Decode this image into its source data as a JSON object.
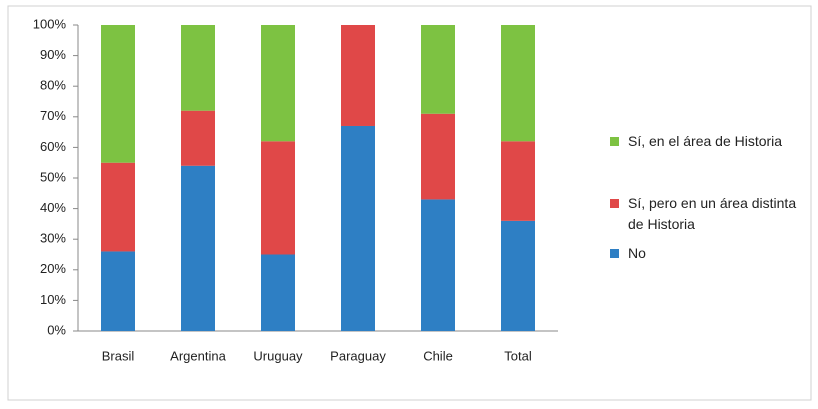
{
  "chart_data": {
    "type": "stacked_bar",
    "categories": [
      "Brasil",
      "Argentina",
      "Uruguay",
      "Paraguay",
      "Chile",
      "Total"
    ],
    "series": [
      {
        "name": "No",
        "color": "#2e7fc4",
        "values": [
          26,
          54,
          25,
          67,
          43,
          36
        ]
      },
      {
        "name": "Sí, pero en un área distinta de Historia",
        "color": "#e04848",
        "values": [
          29,
          18,
          37,
          33,
          28,
          26
        ]
      },
      {
        "name": "Sí, en el área de Historia",
        "color": "#7dc242",
        "values": [
          45,
          28,
          38,
          0,
          29,
          38
        ]
      }
    ],
    "ylim": [
      0,
      100
    ],
    "yticks": [
      {
        "value": 0,
        "label": "0%"
      },
      {
        "value": 10,
        "label": "10%"
      },
      {
        "value": 20,
        "label": "20%"
      },
      {
        "value": 30,
        "label": "30%"
      },
      {
        "value": 40,
        "label": "40%"
      },
      {
        "value": 50,
        "label": "50%"
      },
      {
        "value": 60,
        "label": "60%"
      },
      {
        "value": 70,
        "label": "70%"
      },
      {
        "value": 80,
        "label": "80%"
      },
      {
        "value": 90,
        "label": "90%"
      },
      {
        "value": 100,
        "label": "100%"
      }
    ],
    "grid": false,
    "legend": "right"
  }
}
